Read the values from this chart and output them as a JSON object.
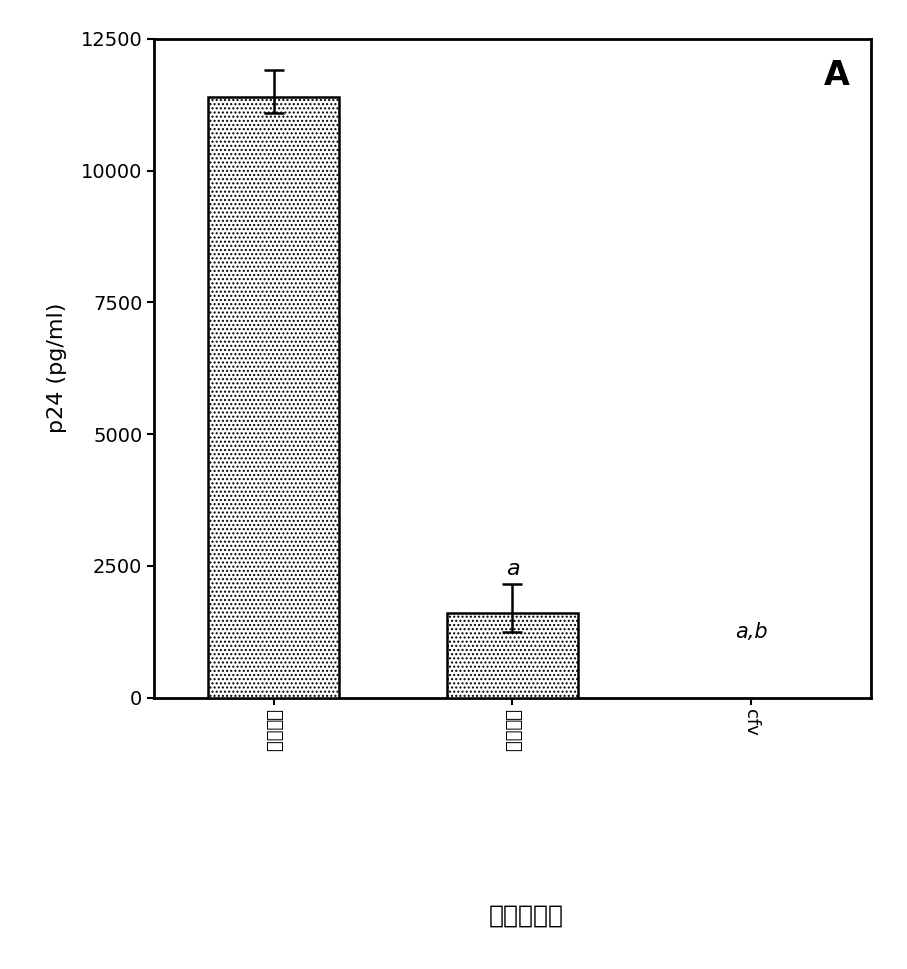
{
  "categories": [
    "单核细胞",
    "淤巴细胞",
    "cfv"
  ],
  "values": [
    11400,
    1600,
    0
  ],
  "errors_upper": [
    500,
    550,
    0
  ],
  "errors_lower": [
    300,
    350,
    0
  ],
  "ylim": [
    0,
    12500
  ],
  "yticks": [
    0,
    2500,
    5000,
    7500,
    10000,
    12500
  ],
  "ylabel": "p24 (pg/ml)",
  "xlabel": "顶端接种物",
  "panel_label": "A",
  "ann_a_text": "a",
  "ann_ab_text": "a,b",
  "ann_ab_y": 1250,
  "hatch": "....",
  "background_color": "#ffffff",
  "figsize": [
    9.07,
    9.69
  ],
  "dpi": 100,
  "bar_width": 0.55,
  "positions": [
    0.5,
    1.5,
    2.5
  ],
  "xlim": [
    0,
    3
  ]
}
